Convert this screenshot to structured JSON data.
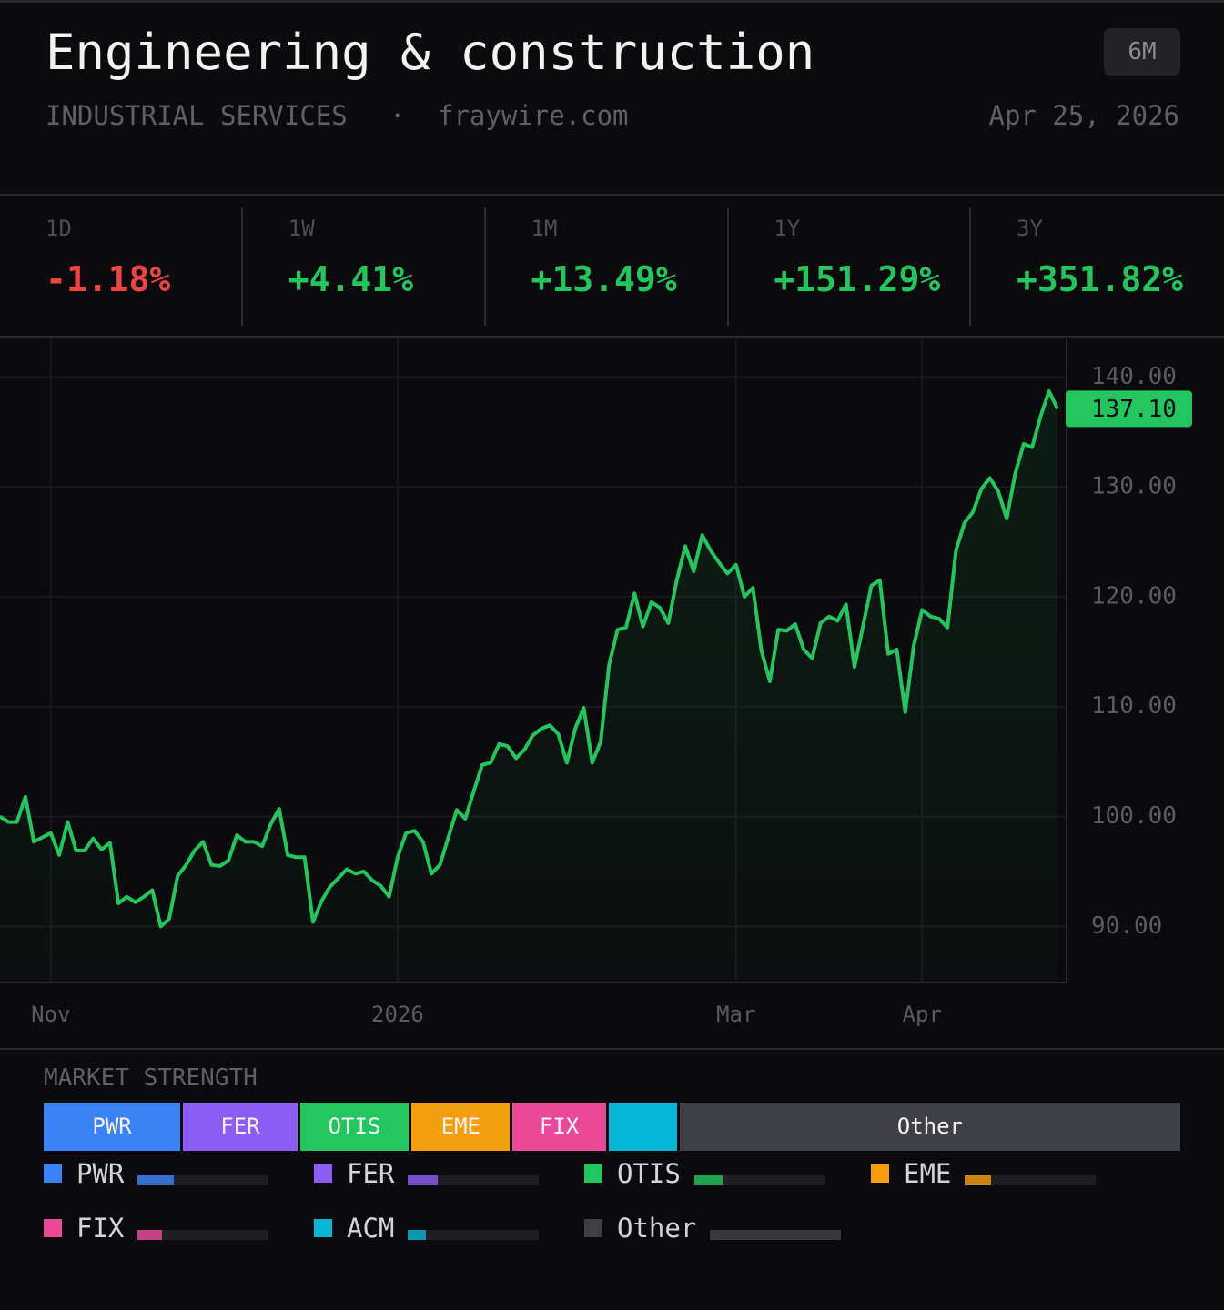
{
  "header": {
    "title": "Engineering & construction",
    "sector": "INDUSTRIAL SERVICES",
    "separator": "·",
    "source": "fraywire.com",
    "range": "6M",
    "date": "Apr 25, 2026"
  },
  "stats": [
    {
      "label": "1D",
      "value": "-1.18%",
      "color": "#ef4444"
    },
    {
      "label": "1W",
      "value": "+4.41%",
      "color": "#22c55e"
    },
    {
      "label": "1M",
      "value": "+13.49%",
      "color": "#22c55e"
    },
    {
      "label": "1Y",
      "value": "+151.29%",
      "color": "#22c55e"
    },
    {
      "label": "3Y",
      "value": "+351.82%",
      "color": "#22c55e"
    }
  ],
  "chart_data": {
    "type": "line",
    "color": "#22c55e",
    "grid": true,
    "categories": [
      null,
      null,
      null,
      null,
      null,
      null,
      "Nov",
      null,
      null,
      null,
      null,
      null,
      null,
      null,
      null,
      null,
      null,
      null,
      null,
      null,
      null,
      null,
      null,
      null,
      null,
      null,
      null,
      null,
      null,
      null,
      null,
      null,
      null,
      null,
      null,
      null,
      null,
      null,
      null,
      null,
      null,
      null,
      null,
      null,
      null,
      null,
      null,
      "2026",
      null,
      null,
      null,
      null,
      null,
      null,
      null,
      null,
      null,
      null,
      null,
      null,
      null,
      null,
      null,
      null,
      null,
      null,
      null,
      null,
      null,
      null,
      null,
      null,
      null,
      null,
      null,
      null,
      null,
      null,
      null,
      null,
      null,
      null,
      null,
      null,
      null,
      null,
      null,
      "Mar",
      null,
      null,
      null,
      null,
      null,
      null,
      null,
      null,
      null,
      null,
      null,
      null,
      null,
      null,
      null,
      null,
      null,
      null,
      null,
      null,
      null,
      "Apr",
      null,
      null,
      null,
      null,
      null,
      null,
      null,
      null,
      null,
      null,
      null,
      null,
      null,
      null,
      null,
      null
    ],
    "values": [
      100.0,
      99.5,
      99.5,
      101.8,
      97.7,
      98.1,
      98.5,
      96.5,
      99.5,
      96.9,
      96.9,
      98.0,
      97.0,
      97.6,
      92.1,
      92.7,
      92.2,
      92.7,
      93.3,
      90.0,
      90.7,
      94.6,
      95.6,
      96.9,
      97.7,
      95.6,
      95.5,
      96.0,
      98.3,
      97.7,
      97.7,
      97.3,
      99.3,
      100.7,
      96.5,
      96.3,
      96.3,
      90.4,
      92.3,
      93.6,
      94.4,
      95.2,
      94.8,
      95.0,
      94.2,
      93.7,
      92.7,
      96.3,
      98.5,
      98.7,
      97.7,
      94.8,
      95.6,
      98.1,
      100.6,
      99.8,
      102.3,
      104.7,
      104.9,
      106.6,
      106.4,
      105.3,
      106.1,
      107.4,
      108.0,
      108.3,
      107.5,
      104.9,
      108.0,
      109.9,
      104.9,
      106.8,
      113.8,
      117.0,
      117.2,
      120.3,
      117.3,
      119.5,
      119.0,
      117.6,
      121.5,
      124.6,
      122.3,
      125.6,
      124.2,
      123.1,
      122.1,
      122.9,
      120.0,
      120.8,
      115.1,
      112.3,
      117.0,
      116.9,
      117.5,
      115.2,
      114.4,
      117.6,
      118.2,
      117.8,
      119.3,
      113.6,
      117.3,
      121.0,
      121.5,
      114.8,
      115.2,
      109.5,
      115.5,
      118.8,
      118.2,
      118.0,
      117.2,
      124.2,
      126.7,
      127.7,
      129.8,
      130.8,
      129.6,
      127.1,
      131.2,
      133.9,
      133.6,
      136.4,
      138.7,
      137.1
    ],
    "value_labels": [
      null,
      null,
      null,
      null,
      null,
      null,
      null,
      null,
      null,
      null,
      null,
      null,
      null,
      null,
      null,
      null,
      null,
      null,
      null,
      null,
      null,
      null,
      null,
      null,
      null,
      null,
      null,
      null,
      null,
      null,
      null,
      null,
      null,
      null,
      null,
      null,
      null,
      null,
      null,
      null,
      null,
      null,
      null,
      null,
      null,
      null,
      null,
      null,
      null,
      null,
      null,
      null,
      null,
      null,
      null,
      null,
      null,
      null,
      null,
      null,
      null,
      null,
      null,
      null,
      null,
      null,
      null,
      null,
      null,
      null,
      null,
      null,
      null,
      null,
      null,
      null,
      null,
      null,
      null,
      null,
      null,
      null,
      null,
      null,
      null,
      null,
      null,
      null,
      null,
      null,
      null,
      null,
      null,
      null,
      null,
      null,
      null,
      null,
      null,
      null,
      null,
      null,
      null,
      null,
      null,
      null,
      null,
      null,
      null,
      null,
      null,
      null,
      null,
      null,
      null,
      null,
      null,
      null,
      null,
      null,
      null,
      null,
      null,
      null,
      null,
      "137.10"
    ],
    "ylim": [
      84.9,
      143.5
    ],
    "yticks": [
      {
        "value": 90,
        "label": "90.00"
      },
      {
        "value": 100,
        "label": "100.00"
      },
      {
        "value": 110,
        "label": "110.00"
      },
      {
        "value": 120,
        "label": "120.00"
      },
      {
        "value": 130,
        "label": "130.00"
      },
      {
        "value": 140,
        "label": "140.00"
      }
    ]
  },
  "market_strength": {
    "title": "MARKET STRENGTH",
    "items": [
      {
        "name": "PWR",
        "color": "#3b82f6",
        "value": 12.2
      },
      {
        "name": "FER",
        "color": "#8b5cf6",
        "value": 10.2
      },
      {
        "name": "OTIS",
        "color": "#22c55e",
        "value": 9.7
      },
      {
        "name": "EME",
        "color": "#f59e0b",
        "value": 8.8
      },
      {
        "name": "FIX",
        "color": "#ec4899",
        "value": 8.3
      },
      {
        "name": "ACM",
        "color": "#06b6d4",
        "value": 6.1
      },
      {
        "name": "Other",
        "color": "#3f3f46",
        "value": 44.7
      }
    ]
  }
}
